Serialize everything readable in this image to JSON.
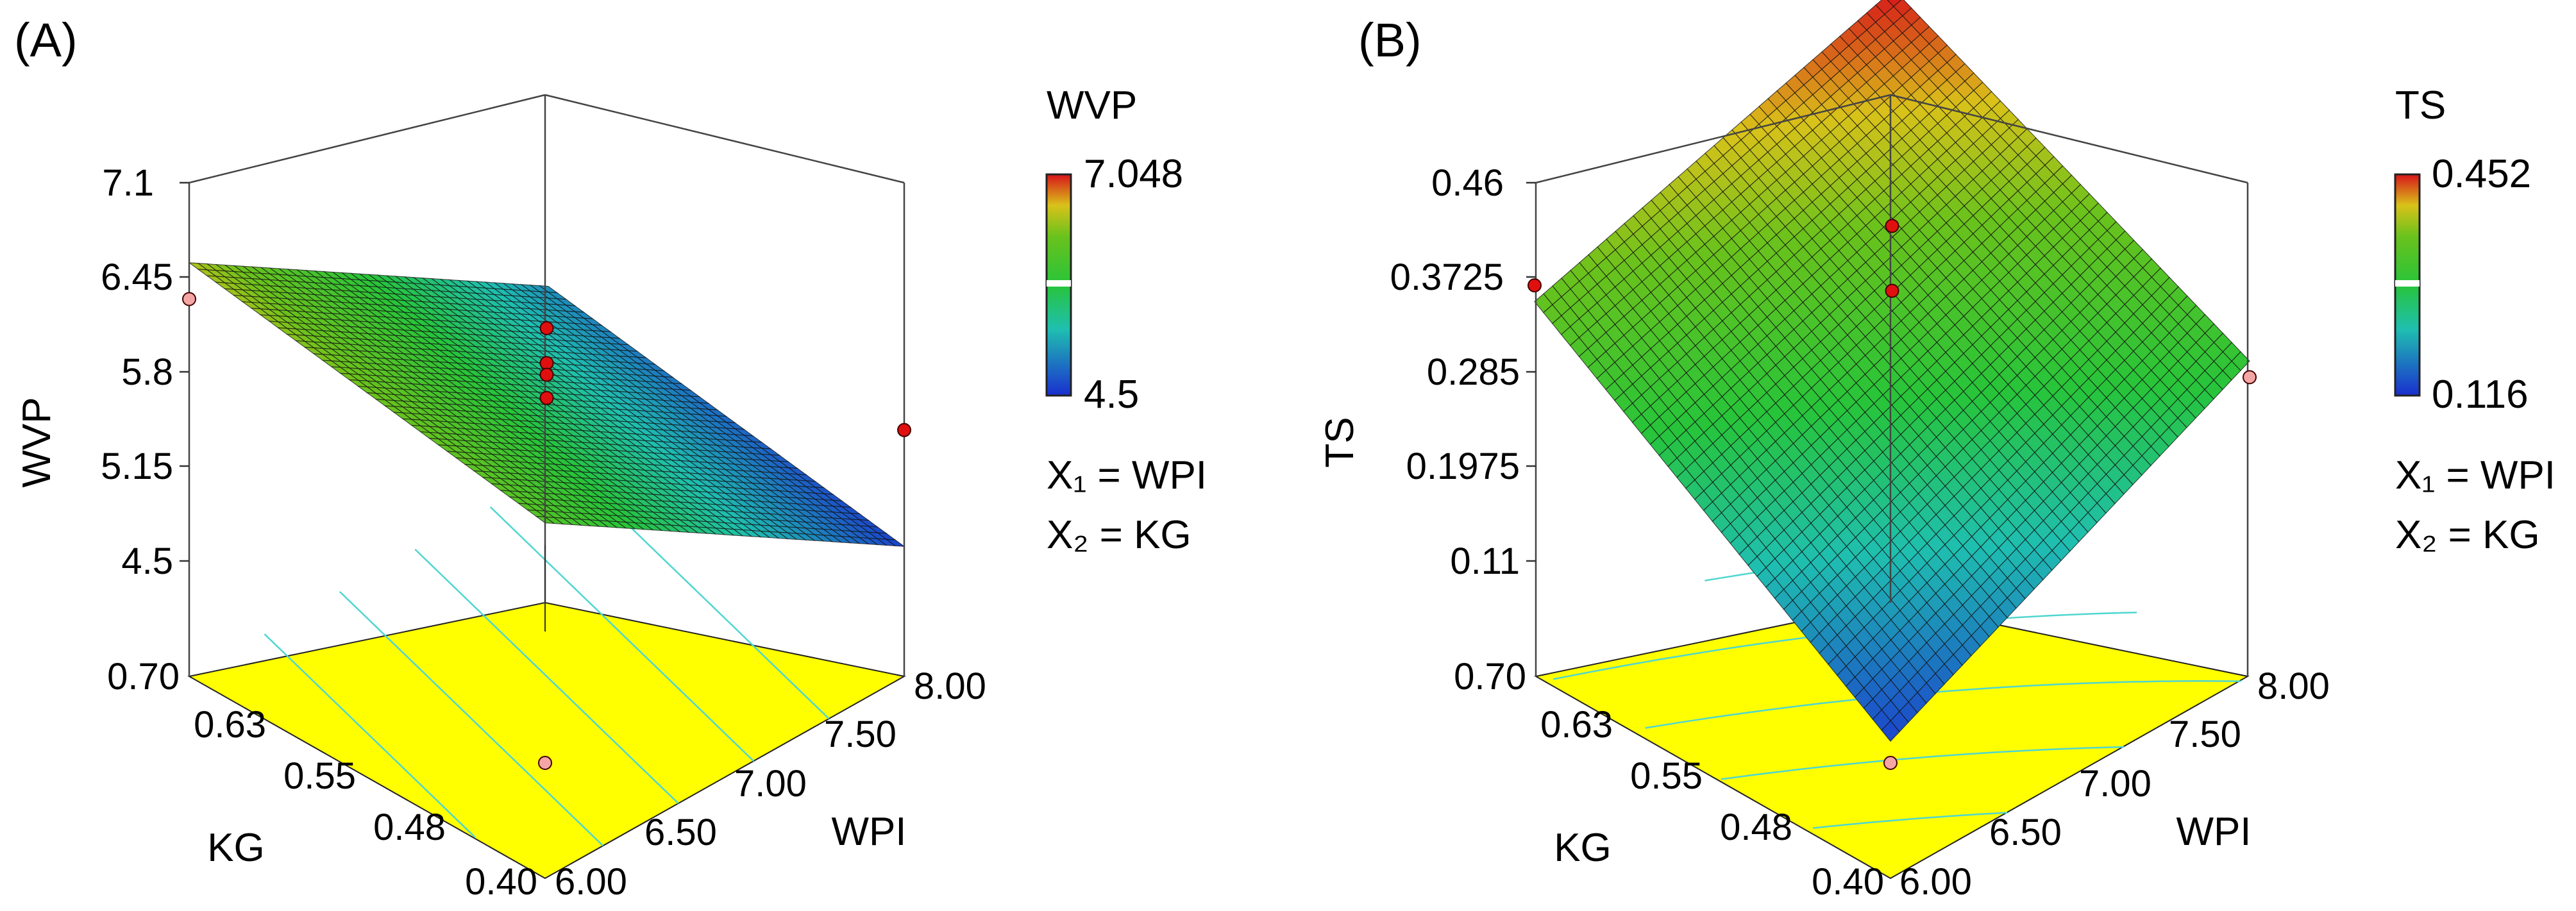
{
  "chart_data": [
    {
      "type": "surface3d",
      "panel_label": "(A)",
      "title": "",
      "zlabel": "WVP",
      "xlabel": "WPI",
      "ylabel": "KG",
      "x_ticks": [
        "6.00",
        "6.50",
        "7.00",
        "7.50",
        "8.00"
      ],
      "y_ticks": [
        "0.40",
        "0.48",
        "0.55",
        "0.63",
        "0.70"
      ],
      "z_ticks": [
        "4.5",
        "5.15",
        "5.8",
        "6.45",
        "7.1"
      ],
      "xlim": [
        6.0,
        8.0
      ],
      "ylim": [
        0.4,
        0.7
      ],
      "zlim": [
        4.5,
        7.1
      ],
      "surface_corners": {
        "x_min_y_min": 6.15,
        "x_max_y_min": 4.6,
        "x_min_y_max": 6.55,
        "x_max_y_max": 5.0
      },
      "design_points": [
        {
          "x": 7.0,
          "y": 0.55,
          "z": 6.1,
          "above_surface": true
        },
        {
          "x": 7.0,
          "y": 0.55,
          "z": 5.86,
          "above_surface": true
        },
        {
          "x": 7.0,
          "y": 0.55,
          "z": 5.78,
          "above_surface": true
        },
        {
          "x": 7.0,
          "y": 0.55,
          "z": 5.62,
          "above_surface": true
        },
        {
          "x": 8.0,
          "y": 0.4,
          "z": 5.4,
          "above_surface": true
        },
        {
          "x": 6.0,
          "y": 0.7,
          "z": 6.3,
          "above_surface": false
        },
        {
          "x": 6.0,
          "y": 0.4,
          "z": 4.5,
          "above_surface": false
        }
      ],
      "colorbar": {
        "title": "WVP",
        "max_label": "7.048",
        "min_label": "4.5",
        "max": 7.048,
        "min": 4.5
      },
      "variables": [
        "X₁ = WPI",
        "X₂ = KG"
      ]
    },
    {
      "type": "surface3d",
      "panel_label": "(B)",
      "title": "",
      "zlabel": "TS",
      "xlabel": "WPI",
      "ylabel": "KG",
      "x_ticks": [
        "6.00",
        "6.50",
        "7.00",
        "7.50",
        "8.00"
      ],
      "y_ticks": [
        "0.40",
        "0.48",
        "0.55",
        "0.63",
        "0.70"
      ],
      "z_ticks": [
        "0.11",
        "0.1975",
        "0.285",
        "0.3725",
        "0.46"
      ],
      "xlim": [
        6.0,
        8.0
      ],
      "ylim": [
        0.4,
        0.7
      ],
      "zlim": [
        0.11,
        0.46
      ],
      "surface_corners": {
        "x_min_y_min": 0.13,
        "x_max_y_min": 0.295,
        "x_min_y_max": 0.35,
        "x_max_y_max": 0.452
      },
      "design_points": [
        {
          "x": 7.0,
          "y": 0.55,
          "z": 0.42,
          "above_surface": true
        },
        {
          "x": 7.0,
          "y": 0.55,
          "z": 0.36,
          "above_surface": true
        },
        {
          "x": 6.0,
          "y": 0.7,
          "z": 0.365,
          "above_surface": true
        },
        {
          "x": 8.0,
          "y": 0.4,
          "z": 0.28,
          "above_surface": false
        },
        {
          "x": 6.0,
          "y": 0.4,
          "z": 0.11,
          "above_surface": false
        }
      ],
      "colorbar": {
        "title": "TS",
        "max_label": "0.452",
        "min_label": "0.116",
        "max": 0.452,
        "min": 0.116
      },
      "variables": [
        "X₁ = WPI",
        "X₂ = KG"
      ]
    }
  ]
}
